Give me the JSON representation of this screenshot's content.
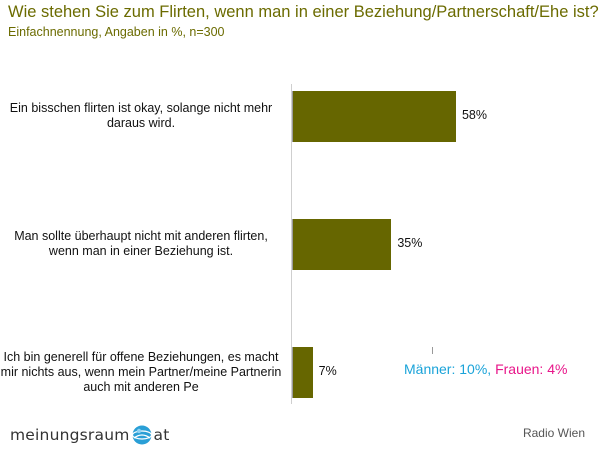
{
  "chart_data": {
    "type": "bar",
    "orientation": "horizontal",
    "title": "Wie stehen Sie zum Flirten, wenn man in einer Beziehung/Partnerschaft/Ehe ist?",
    "subtitle": "Einfachnennung, Angaben in %, n=300",
    "categories": [
      "Ein bisschen flirten ist okay, solange nicht mehr daraus wird.",
      "Man sollte überhaupt nicht mit anderen flirten, wenn man in einer Beziehung ist.",
      "Ich bin generell für offene Beziehungen, es macht mir nichts aus, wenn mein Partner/meine Partnerin auch mit anderen Pe"
    ],
    "values": [
      58,
      35,
      7
    ],
    "value_labels": [
      "58%",
      "35%",
      "7%"
    ],
    "xlim": [
      0,
      100
    ],
    "grid": false,
    "bar_color": "#666600"
  },
  "annotation": {
    "maenner": "Männer: 10%,",
    "frauen": "Frauen: 4%",
    "maenner_color": "#1aa3d9",
    "frauen_color": "#e8168a"
  },
  "source": "Radio Wien",
  "logo": {
    "left_text": "meinungsraum",
    "right_text": "at"
  }
}
